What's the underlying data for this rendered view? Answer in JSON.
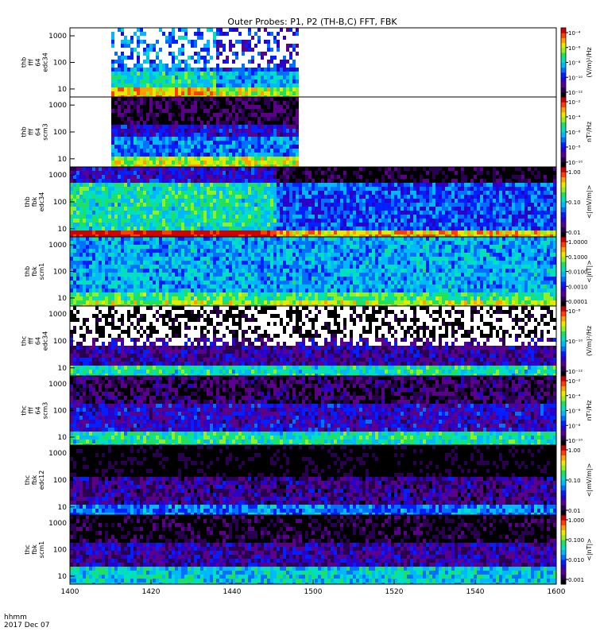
{
  "title": "Outer Probes: P1, P2 (TH-B,C) FFT, FBK",
  "time_label_1": "hhmm",
  "time_label_2": "2017 Dec 07",
  "chart_data": [
    {
      "type": "heatmap",
      "ylabel": [
        "thb",
        "fff",
        "64",
        "edc34"
      ],
      "yscale": "log",
      "yticks": [
        "10",
        "100",
        "1000"
      ],
      "colorbar": {
        "label": "(V/m)²/Hz",
        "ticks": [
          "10⁻¹²",
          "10⁻¹⁰",
          "10⁻⁸",
          "10⁻⁶",
          "10⁻⁴"
        ]
      }
    },
    {
      "type": "heatmap",
      "ylabel": [
        "thb",
        "fff",
        "64",
        "scm3"
      ],
      "yscale": "log",
      "yticks": [
        "10",
        "100",
        "1000"
      ],
      "colorbar": {
        "label": "nT²/Hz",
        "ticks": [
          "10⁻¹⁰",
          "10⁻⁸",
          "10⁻⁶",
          "10⁻⁴",
          "10⁻²"
        ]
      }
    },
    {
      "type": "heatmap",
      "ylabel": [
        "thb",
        "fbk",
        "edc34"
      ],
      "yscale": "log",
      "yticks": [
        "10",
        "100",
        "1000"
      ],
      "colorbar": {
        "label": "<|mV/m|>",
        "ticks": [
          "0.01",
          "0.10",
          "1.00"
        ]
      }
    },
    {
      "type": "heatmap",
      "ylabel": [
        "thb",
        "fbk",
        "scm1"
      ],
      "yscale": "log",
      "yticks": [
        "10",
        "100",
        "1000"
      ],
      "colorbar": {
        "label": "<|nT|>",
        "ticks": [
          "0.0001",
          "0.0010",
          "0.0100",
          "0.1000",
          "1.0000"
        ]
      }
    },
    {
      "type": "heatmap",
      "ylabel": [
        "thc",
        "fff",
        "64",
        "edc34"
      ],
      "yscale": "log",
      "yticks": [
        "10",
        "100",
        "1000"
      ],
      "colorbar": {
        "label": "(V/m)²/Hz",
        "ticks": [
          "10⁻¹²",
          "10⁻¹⁰",
          "10⁻⁸"
        ]
      }
    },
    {
      "type": "heatmap",
      "ylabel": [
        "thc",
        "fff",
        "64",
        "scm3"
      ],
      "yscale": "log",
      "yticks": [
        "10",
        "100",
        "1000"
      ],
      "colorbar": {
        "label": "nT²/Hz",
        "ticks": [
          "10⁻¹⁰",
          "10⁻⁸",
          "10⁻⁶",
          "10⁻⁴",
          "10⁻²"
        ]
      }
    },
    {
      "type": "heatmap",
      "ylabel": [
        "thc",
        "fbk",
        "edc12"
      ],
      "yscale": "log",
      "yticks": [
        "10",
        "100",
        "1000"
      ],
      "colorbar": {
        "label": "<|mV/m|>",
        "ticks": [
          "0.01",
          "0.10",
          "1.00"
        ]
      }
    },
    {
      "type": "heatmap",
      "ylabel": [
        "thc",
        "fbk",
        "scm1"
      ],
      "yscale": "log",
      "yticks": [
        "10",
        "100",
        "1000"
      ],
      "colorbar": {
        "label": "<|nT|>",
        "ticks": [
          "0.001",
          "0.010",
          "0.100",
          "1.000"
        ]
      }
    }
  ],
  "x_axis": {
    "ticks": [
      "1400",
      "1420",
      "1440",
      "1500",
      "1520",
      "1540",
      "1600"
    ],
    "range": [
      "14:00",
      "16:00"
    ]
  },
  "colorscale": [
    "#000000",
    "#2a0050",
    "#5a008a",
    "#2b00c8",
    "#0020ff",
    "#0070ff",
    "#00b8ff",
    "#00e0c0",
    "#20e060",
    "#90f020",
    "#e8e800",
    "#ffa000",
    "#ff4000",
    "#d00000"
  ]
}
